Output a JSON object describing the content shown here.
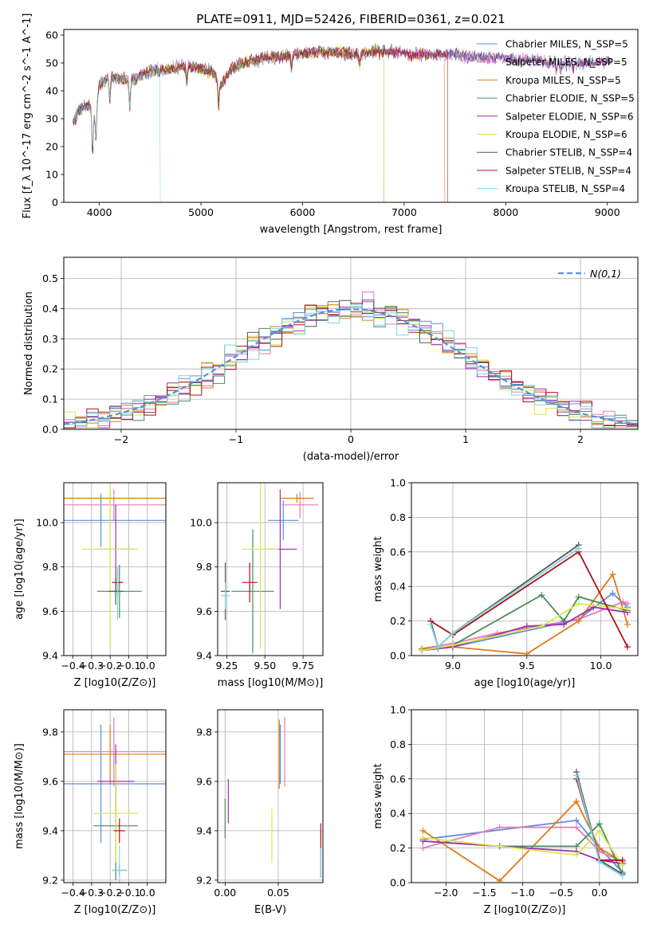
{
  "figure": {
    "title": "PLATE=0911, MJD=52426, FIBERID=0361, z=0.021"
  },
  "series_styles": [
    {
      "name": "Chabrier MILES",
      "nssp_label": "N_SSP=5",
      "color": "#5b8fde"
    },
    {
      "name": "Salpeter MILES",
      "nssp_label": "N_SSP=5",
      "color": "#e67ab6"
    },
    {
      "name": "Kroupa MILES",
      "nssp_label": "N_SSP=5",
      "color": "#e07b1a"
    },
    {
      "name": "Chabrier ELODIE",
      "nssp_label": "N_SSP=5",
      "color": "#4b8a5c"
    },
    {
      "name": "Salpeter ELODIE",
      "nssp_label": "N_SSP=6",
      "color": "#a12eb0"
    },
    {
      "name": "Kroupa ELODIE",
      "nssp_label": "N_SSP=6",
      "color": "#d7e84a"
    },
    {
      "name": "Chabrier STELIB",
      "nssp_label": "N_SSP=4",
      "color": "#555555"
    },
    {
      "name": "Salpeter STELIB",
      "nssp_label": "N_SSP=4",
      "color": "#b0101a"
    },
    {
      "name": "Kroupa STELIB",
      "nssp_label": "N_SSP=4",
      "color": "#7fd6e0"
    }
  ],
  "chart_data": [
    {
      "id": "spectrum",
      "type": "line",
      "xlabel": "wavelength [Angstrom, rest frame]",
      "ylabel": "Flux [f_λ 10^-17 erg cm^-2 s^-1 A^-1]",
      "xlim": [
        3650,
        9300
      ],
      "ylim": [
        0,
        62
      ],
      "xticks": [
        4000,
        5000,
        6000,
        7000,
        8000,
        9000
      ],
      "yticks": [
        0,
        10,
        20,
        30,
        40,
        50,
        60
      ],
      "grid": false,
      "legend": "top-right",
      "continuum_points": [
        [
          3740,
          28
        ],
        [
          3800,
          33
        ],
        [
          3900,
          35
        ],
        [
          3950,
          30
        ],
        [
          4000,
          42
        ],
        [
          4100,
          45
        ],
        [
          4250,
          44
        ],
        [
          4350,
          44
        ],
        [
          4400,
          45
        ],
        [
          4500,
          47
        ],
        [
          4700,
          48
        ],
        [
          4900,
          49
        ],
        [
          5100,
          47
        ],
        [
          5200,
          42
        ],
        [
          5300,
          48
        ],
        [
          5500,
          51
        ],
        [
          5700,
          52
        ],
        [
          5900,
          53
        ],
        [
          6100,
          54
        ],
        [
          6300,
          54
        ],
        [
          6500,
          53
        ],
        [
          6700,
          54
        ],
        [
          6900,
          54
        ],
        [
          7100,
          53
        ],
        [
          7300,
          53
        ],
        [
          7500,
          53
        ],
        [
          7700,
          52
        ],
        [
          7900,
          52
        ],
        [
          8100,
          51
        ],
        [
          8300,
          51
        ],
        [
          8500,
          50
        ],
        [
          8700,
          50
        ],
        [
          8900,
          50
        ],
        [
          9050,
          51
        ]
      ],
      "absorption_lines": [
        [
          3933,
          14
        ],
        [
          3968,
          12
        ],
        [
          4102,
          8
        ],
        [
          4300,
          10
        ],
        [
          4861,
          6
        ],
        [
          5175,
          9
        ],
        [
          5890,
          5
        ],
        [
          6563,
          4
        ],
        [
          8498,
          3
        ],
        [
          8542,
          4
        ],
        [
          8662,
          3
        ]
      ],
      "series_ranges": [
        [
          3740,
          9050
        ],
        [
          3740,
          9050
        ],
        [
          3740,
          7400
        ],
        [
          3740,
          6800
        ],
        [
          3740,
          9050
        ],
        [
          3900,
          6800
        ],
        [
          3740,
          9050
        ],
        [
          3740,
          7430
        ],
        [
          3740,
          4600
        ]
      ]
    },
    {
      "id": "residuals",
      "type": "bar",
      "xlabel": "(data-model)/error",
      "ylabel": "Normed distribution",
      "xlim": [
        -2.5,
        2.5
      ],
      "ylim": [
        0,
        0.57
      ],
      "xticks": [
        -2,
        -1,
        0,
        1,
        2
      ],
      "yticks": [
        0.0,
        0.1,
        0.2,
        0.3,
        0.4,
        0.5
      ],
      "grid": true,
      "legend": "top-right",
      "reference_label": "N(0,1)",
      "reference_color": "#5b8fde",
      "bin_width": 0.1
    },
    {
      "id": "age_vs_Z",
      "type": "scatter",
      "xlabel": "Z [log10(Z/Z⊙)]",
      "ylabel": "age [log10(age/yr)]",
      "xlim": [
        -0.45,
        0.1
      ],
      "ylim": [
        9.4,
        10.18
      ],
      "xticks": [
        -0.4,
        -0.3,
        -0.2,
        -0.1,
        0.0
      ],
      "yticks": [
        9.4,
        9.6,
        9.8,
        10.0
      ],
      "grid": true,
      "points": [
        {
          "x": -0.25,
          "y": 10.01,
          "xerr": 0.415,
          "yerr": 0.12
        },
        {
          "x": -0.18,
          "y": 10.08,
          "xerr": 0.37,
          "yerr": 0.07
        },
        {
          "x": -0.2,
          "y": 10.11,
          "xerr": 0.33,
          "yerr": 0.03
        },
        {
          "x": -0.15,
          "y": 9.69,
          "xerr": 0.12,
          "yerr": 0.12
        },
        {
          "x": -0.17,
          "y": 9.88,
          "xerr": 0.1,
          "yerr": 0.2
        },
        {
          "x": -0.2,
          "y": 9.88,
          "xerr": 0.15,
          "yerr": 0.45
        },
        {
          "x": -0.17,
          "y": 9.69,
          "xerr": 0.04,
          "yerr": 0.06
        },
        {
          "x": -0.16,
          "y": 9.73,
          "xerr": 0.03,
          "yerr": 0.06
        },
        {
          "x": -0.16,
          "y": 9.68,
          "xerr": 0.02,
          "yerr": 0.12
        }
      ]
    },
    {
      "id": "age_vs_mass",
      "type": "scatter",
      "xlabel": "mass [log10(M/M⊙)]",
      "ylabel": "",
      "xlim": [
        9.19,
        9.88
      ],
      "ylim": [
        9.4,
        10.18
      ],
      "xticks": [
        9.25,
        9.5,
        9.75
      ],
      "yticks": [
        9.4,
        9.6,
        9.8,
        10.0
      ],
      "grid": true,
      "points": [
        {
          "x": 9.62,
          "y": 10.01,
          "xerr": 0.1,
          "yerr": 0.09
        },
        {
          "x": 9.73,
          "y": 10.08,
          "xerr": 0.12,
          "yerr": 0.06
        },
        {
          "x": 9.71,
          "y": 10.11,
          "xerr": 0.11,
          "yerr": 0.02
        },
        {
          "x": 9.42,
          "y": 9.69,
          "xerr": 0.14,
          "yerr": 0.28
        },
        {
          "x": 9.6,
          "y": 9.88,
          "xerr": 0.11,
          "yerr": 0.27
        },
        {
          "x": 9.47,
          "y": 9.88,
          "xerr": 0.12,
          "yerr": 0.45
        },
        {
          "x": 9.24,
          "y": 9.69,
          "xerr": 0.03,
          "yerr": 0.13
        },
        {
          "x": 9.4,
          "y": 9.73,
          "xerr": 0.05,
          "yerr": 0.09
        },
        {
          "x": 9.24,
          "y": 9.67,
          "xerr": 0.03,
          "yerr": 0.06
        }
      ]
    },
    {
      "id": "weight_vs_age",
      "type": "line",
      "xlabel": "age [log10(age/yr)]",
      "ylabel": "mass weight",
      "xlim": [
        8.72,
        10.25
      ],
      "ylim": [
        0,
        1.0
      ],
      "xticks": [
        9.0,
        9.5,
        10.0
      ],
      "yticks": [
        0.0,
        0.2,
        0.4,
        0.6,
        0.8,
        1.0
      ],
      "grid": true,
      "series": [
        {
          "x": [
            8.79,
            8.9,
            9.0,
            9.85,
            10.08,
            10.18
          ],
          "y": [
            0.03,
            0.04,
            0.05,
            0.21,
            0.36,
            0.28
          ]
        },
        {
          "x": [
            8.79,
            9.0,
            9.3,
            9.85,
            10.15,
            10.18
          ],
          "y": [
            0.04,
            0.07,
            0.13,
            0.21,
            0.31,
            0.3
          ]
        },
        {
          "x": [
            8.79,
            9.0,
            9.5,
            9.85,
            10.08,
            10.18
          ],
          "y": [
            0.04,
            0.05,
            0.01,
            0.2,
            0.47,
            0.18
          ]
        },
        {
          "x": [
            8.79,
            9.0,
            9.6,
            9.75,
            9.85,
            10.18
          ],
          "y": [
            0.03,
            0.06,
            0.35,
            0.2,
            0.34,
            0.26
          ]
        },
        {
          "x": [
            8.79,
            9.0,
            9.5,
            9.75,
            9.95,
            10.18
          ],
          "y": [
            0.03,
            0.05,
            0.17,
            0.18,
            0.28,
            0.25
          ]
        },
        {
          "x": [
            8.79,
            9.0,
            9.6,
            9.85,
            10.18
          ],
          "y": [
            0.03,
            0.06,
            0.17,
            0.3,
            0.27
          ]
        },
        {
          "x": [
            8.85,
            8.9,
            9.0,
            9.85
          ],
          "y": [
            0.2,
            0.05,
            0.13,
            0.64
          ]
        },
        {
          "x": [
            8.85,
            9.0,
            9.85,
            10.18
          ],
          "y": [
            0.2,
            0.12,
            0.6,
            0.05
          ]
        },
        {
          "x": [
            8.85,
            8.9,
            9.0,
            9.85
          ],
          "y": [
            0.18,
            0.05,
            0.13,
            0.62
          ]
        }
      ]
    },
    {
      "id": "mass_vs_Z",
      "type": "scatter",
      "xlabel": "Z [log10(Z/Z⊙)]",
      "ylabel": "mass [log10(M/M⊙)]",
      "xlim": [
        -0.45,
        0.1
      ],
      "ylim": [
        9.19,
        9.89
      ],
      "xticks": [
        -0.4,
        -0.3,
        -0.2,
        -0.1,
        0.0
      ],
      "yticks": [
        9.2,
        9.4,
        9.6,
        9.8
      ],
      "grid": true,
      "points": [
        {
          "x": -0.25,
          "y": 9.59,
          "xerr": 0.41,
          "yerr": 0.24
        },
        {
          "x": -0.18,
          "y": 9.72,
          "xerr": 0.38,
          "yerr": 0.14
        },
        {
          "x": -0.2,
          "y": 9.71,
          "xerr": 0.33,
          "yerr": 0.12
        },
        {
          "x": -0.17,
          "y": 9.42,
          "xerr": 0.12,
          "yerr": 0.22
        },
        {
          "x": -0.17,
          "y": 9.6,
          "xerr": 0.1,
          "yerr": 0.15
        },
        {
          "x": -0.17,
          "y": 9.47,
          "xerr": 0.12,
          "yerr": 0.2
        },
        {
          "x": -0.15,
          "y": 9.24,
          "xerr": 0.04,
          "yerr": 0.02
        },
        {
          "x": -0.15,
          "y": 9.4,
          "xerr": 0.03,
          "yerr": 0.05
        },
        {
          "x": -0.15,
          "y": 9.24,
          "xerr": 0.04,
          "yerr": 0.1
        }
      ]
    },
    {
      "id": "mass_vs_ebv",
      "type": "scatter",
      "xlabel": "E(B-V)",
      "ylabel": "",
      "xlim": [
        -0.007,
        0.092
      ],
      "ylim": [
        9.19,
        9.89
      ],
      "xticks": [
        0.0,
        0.05
      ],
      "yticks": [
        9.2,
        9.4,
        9.6,
        9.8
      ],
      "grid": true,
      "points": [
        {
          "x": 0.052,
          "y": 9.71,
          "xerr": 0.0,
          "yerr": 0.12
        },
        {
          "x": 0.056,
          "y": 9.72,
          "xerr": 0.0,
          "yerr": 0.14
        },
        {
          "x": 0.051,
          "y": 9.71,
          "xerr": 0.0,
          "yerr": 0.14
        },
        {
          "x": 0.0,
          "y": 9.45,
          "xerr": 0.0,
          "yerr": 0.08
        },
        {
          "x": 0.003,
          "y": 9.52,
          "xerr": 0.0,
          "yerr": 0.09
        },
        {
          "x": 0.044,
          "y": 9.38,
          "xerr": 0.0,
          "yerr": 0.11
        },
        {
          "x": 0.09,
          "y": 9.27,
          "xerr": 0.0,
          "yerr": 0.06
        },
        {
          "x": 0.09,
          "y": 9.38,
          "xerr": 0.0,
          "yerr": 0.05
        },
        {
          "x": 0.09,
          "y": 9.27,
          "xerr": 0.0,
          "yerr": 0.06
        }
      ]
    },
    {
      "id": "weight_vs_Z",
      "type": "line",
      "xlabel": "Z [log10(Z/Z⊙)]",
      "ylabel": "mass weight",
      "xlim": [
        -2.45,
        0.5
      ],
      "ylim": [
        0,
        1.0
      ],
      "xticks": [
        -2.0,
        -1.5,
        -1.0,
        -0.5,
        0.0
      ],
      "yticks": [
        0.0,
        0.2,
        0.4,
        0.6,
        0.8,
        1.0
      ],
      "grid": true,
      "series": [
        {
          "x": [
            -2.3,
            -0.3,
            0.0,
            0.3
          ],
          "y": [
            0.25,
            0.36,
            0.2,
            0.06
          ]
        },
        {
          "x": [
            -2.3,
            -1.3,
            -0.3,
            0.0,
            0.3
          ],
          "y": [
            0.2,
            0.32,
            0.32,
            0.18,
            0.12
          ]
        },
        {
          "x": [
            -2.3,
            -1.3,
            -0.3,
            0.0,
            0.3
          ],
          "y": [
            0.3,
            0.01,
            0.47,
            0.2,
            0.12
          ]
        },
        {
          "x": [
            -2.3,
            -1.3,
            -0.3,
            0.0,
            0.3
          ],
          "y": [
            0.24,
            0.21,
            0.21,
            0.34,
            0.05
          ]
        },
        {
          "x": [
            -2.3,
            -0.3,
            0.0,
            0.3
          ],
          "y": [
            0.24,
            0.18,
            0.13,
            0.11
          ]
        },
        {
          "x": [
            -2.3,
            -0.3,
            0.0,
            0.3
          ],
          "y": [
            0.26,
            0.16,
            0.3,
            0.1
          ]
        },
        {
          "x": [
            -0.3,
            0.0,
            0.3
          ],
          "y": [
            0.64,
            0.13,
            0.05
          ]
        },
        {
          "x": [
            -0.3,
            0.0,
            0.3
          ],
          "y": [
            0.6,
            0.13,
            0.13
          ]
        },
        {
          "x": [
            -0.3,
            0.0,
            0.3
          ],
          "y": [
            0.62,
            0.12,
            0.04
          ]
        }
      ]
    }
  ]
}
